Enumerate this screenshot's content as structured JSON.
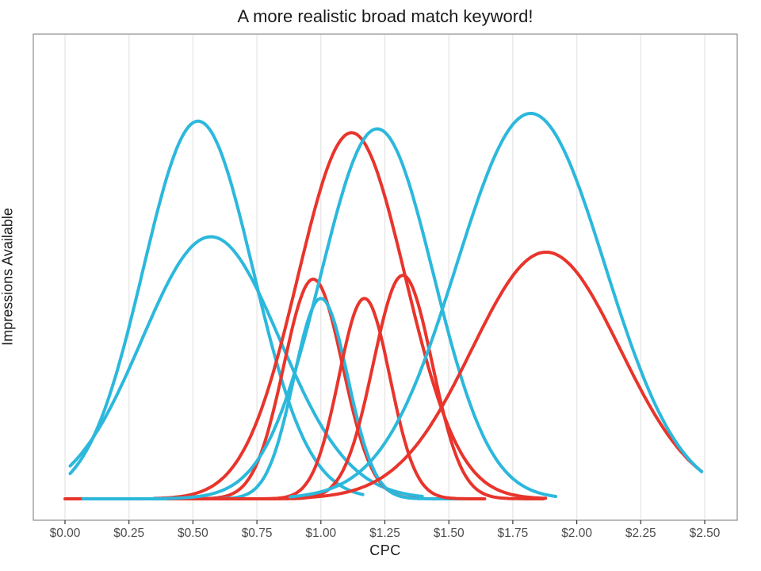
{
  "chart_data": {
    "type": "line",
    "subtype": "gaussian-density-curves",
    "title": "A more realistic broad match keyword!",
    "xlabel": "CPC",
    "ylabel": "Impressions Available",
    "x_ticks": {
      "labels": [
        "$0.00",
        "$0.25",
        "$0.50",
        "$0.75",
        "$1.00",
        "$1.25",
        "$1.50",
        "$1.75",
        "$2.00",
        "$2.25",
        "$2.50"
      ],
      "values": [
        0,
        0.25,
        0.5,
        0.75,
        1.0,
        1.25,
        1.5,
        1.75,
        2.0,
        2.25,
        2.5
      ]
    },
    "xlim": [
      -0.12,
      2.63
    ],
    "ylim_note": "y axis unlabeled; peak heights are relative (1.0 = tallest curve)",
    "grid": "vertical-only",
    "legend": "none",
    "colors": {
      "red": "#E8352C",
      "blue": "#2CB8DC",
      "gridline": "#e8e8e8",
      "panel_border": "#8c8c8c",
      "tick_label": "#4d4d4d",
      "tick_mark": "#333333"
    },
    "series": [
      {
        "name": "blue-curve-1",
        "color_group": "blue",
        "mean": 0.52,
        "sd": 0.215,
        "peak": 0.98,
        "domain": [
          0.02,
          1.17
        ]
      },
      {
        "name": "blue-curve-2",
        "color_group": "blue",
        "mean": 0.57,
        "sd": 0.27,
        "peak": 0.68,
        "domain": [
          0.02,
          1.4
        ]
      },
      {
        "name": "red-curve-1",
        "color_group": "red",
        "mean": 0.97,
        "sd": 0.115,
        "peak": 0.57,
        "domain": [
          0.0,
          1.39
        ]
      },
      {
        "name": "blue-curve-3",
        "color_group": "blue",
        "mean": 1.0,
        "sd": 0.105,
        "peak": 0.52,
        "domain": [
          0.3,
          1.62
        ]
      },
      {
        "name": "red-curve-2",
        "color_group": "red",
        "mean": 1.17,
        "sd": 0.1,
        "peak": 0.52,
        "domain": [
          0.4,
          1.64
        ]
      },
      {
        "name": "red-curve-3",
        "color_group": "red",
        "mean": 1.12,
        "sd": 0.21,
        "peak": 0.95,
        "domain": [
          0.35,
          1.88
        ]
      },
      {
        "name": "blue-curve-4",
        "color_group": "blue",
        "mean": 1.22,
        "sd": 0.22,
        "peak": 0.96,
        "domain": [
          0.07,
          1.92
        ]
      },
      {
        "name": "red-curve-4",
        "color_group": "red",
        "mean": 1.32,
        "sd": 0.115,
        "peak": 0.58,
        "domain": [
          0.55,
          1.87
        ]
      },
      {
        "name": "red-curve-5",
        "color_group": "red",
        "mean": 1.88,
        "sd": 0.29,
        "peak": 0.64,
        "domain": [
          0.92,
          2.49
        ]
      },
      {
        "name": "blue-curve-5",
        "color_group": "blue",
        "mean": 1.82,
        "sd": 0.29,
        "peak": 1.0,
        "domain": [
          0.88,
          2.49
        ]
      }
    ]
  }
}
